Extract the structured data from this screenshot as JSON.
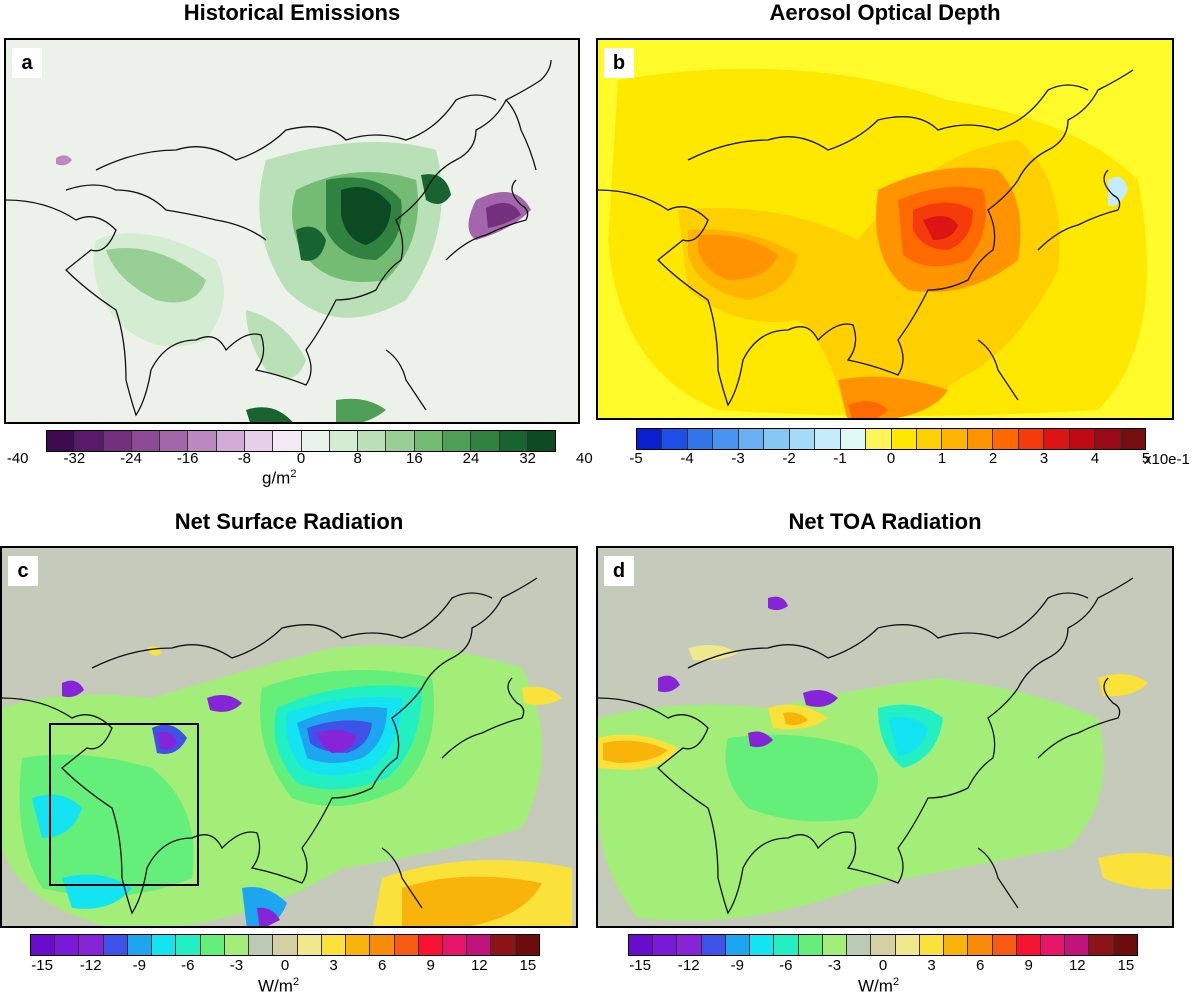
{
  "panels": [
    {
      "id": "a",
      "title": "Historical Emissions",
      "label": "a",
      "background": "#ecf2ea",
      "colorbar": {
        "colors": [
          "#3d0a4f",
          "#5a1a6b",
          "#74307f",
          "#8c4a95",
          "#a466aa",
          "#bb88c0",
          "#d2acd6",
          "#e6cfe8",
          "#f3ebf3",
          "#eaf3ea",
          "#d3ecd2",
          "#b9e0b7",
          "#97cf95",
          "#74bb74",
          "#4f9f57",
          "#2f8240",
          "#176431",
          "#0b4a22"
        ],
        "ticks": [
          "-40",
          "-32",
          "-24",
          "-16",
          "-8",
          "0",
          "8",
          "16",
          "24",
          "32",
          "40"
        ],
        "unit": "g/m",
        "unit_sup": "2"
      }
    },
    {
      "id": "b",
      "title": "Aerosol Optical Depth",
      "label": "b",
      "background": "#fffb2a",
      "colorbar": {
        "colors": [
          "#0a1fcf",
          "#1d4ee6",
          "#3274ea",
          "#4a92ef",
          "#68b0f2",
          "#86c7f5",
          "#a6dbf7",
          "#c5ecf8",
          "#e0f8f8",
          "#fff55a",
          "#ffe800",
          "#ffd000",
          "#ffb400",
          "#ff9400",
          "#ff6a00",
          "#f53b0a",
          "#dc1414",
          "#bf0a14",
          "#9a0a16",
          "#760f12"
        ],
        "ticks": [
          "-5",
          "-4",
          "-3",
          "-2",
          "-1",
          "0",
          "1",
          "2",
          "3",
          "4",
          "5"
        ],
        "unit": "x10e-1",
        "unit_sup": ""
      }
    },
    {
      "id": "c",
      "title": "Net Surface Radiation",
      "label": "c",
      "background": "#c6cabb",
      "colorbar": {
        "colors": [
          "#6a0ccc",
          "#7a1ad8",
          "#8624d8",
          "#3e52e8",
          "#1ea5f0",
          "#14e3f2",
          "#22f0c2",
          "#64ee7a",
          "#a2ee78",
          "#bcc9b4",
          "#d4d0a4",
          "#efe88c",
          "#fbe23a",
          "#f8b40a",
          "#f78c0a",
          "#f75a12",
          "#f61432",
          "#e6166a",
          "#c0147c",
          "#8c1418",
          "#6c0c0c"
        ],
        "ticks": [
          "-15",
          "-12",
          "-9",
          "-6",
          "-3",
          "0",
          "3",
          "6",
          "9",
          "12",
          "15"
        ],
        "unit": "W/m",
        "unit_sup": "2"
      }
    },
    {
      "id": "d",
      "title": "Net TOA Radiation",
      "label": "d",
      "background": "#c6cabb",
      "colorbar": {
        "colors": [
          "#6a0ccc",
          "#7a1ad8",
          "#8624d8",
          "#3e52e8",
          "#1ea5f0",
          "#14e3f2",
          "#22f0c2",
          "#64ee7a",
          "#a2ee78",
          "#bcc9b4",
          "#d4d0a4",
          "#efe88c",
          "#fbe23a",
          "#f8b40a",
          "#f78c0a",
          "#f75a12",
          "#f61432",
          "#e6166a",
          "#c0147c",
          "#8c1418",
          "#6c0c0c"
        ],
        "ticks": [
          "-15",
          "-12",
          "-9",
          "-6",
          "-3",
          "0",
          "3",
          "6",
          "9",
          "12",
          "15"
        ],
        "unit": "W/m",
        "unit_sup": "2"
      }
    }
  ]
}
